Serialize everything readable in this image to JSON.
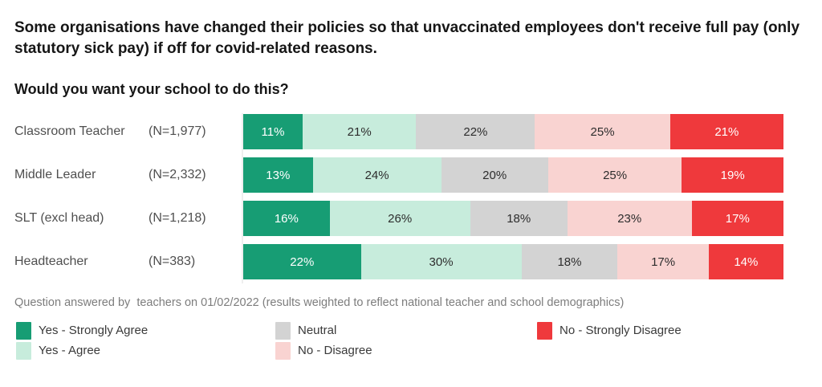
{
  "header": {
    "title": "Some organisations have changed their policies so that unvaccinated employees don't receive full pay (only statutory sick pay) if off for covid-related reasons.",
    "question": "Would you want your school to do this?"
  },
  "footnote": "Question answered by  teachers on 01/02/2022 (results weighted to reflect national teacher and school demographics)",
  "legend": [
    {
      "label": "Yes - Strongly Agree",
      "color": "#179D74",
      "text_color": "#ffffff"
    },
    {
      "label": "Yes - Agree",
      "color": "#C7ECDC",
      "text_color": "#2d2d2d"
    },
    {
      "label": "Neutral",
      "color": "#D3D3D3",
      "text_color": "#2d2d2d"
    },
    {
      "label": "No - Disagree",
      "color": "#F9D3D1",
      "text_color": "#2d2d2d"
    },
    {
      "label": "No - Strongly Disagree",
      "color": "#EF393C",
      "text_color": "#ffffff"
    }
  ],
  "chart_data": {
    "type": "bar",
    "orientation": "horizontal",
    "stacked": true,
    "stacked_total": 100,
    "value_suffix": "%",
    "grid": false,
    "legend_position": "bottom",
    "categories": [
      "Classroom Teacher",
      "Middle Leader",
      "SLT (excl head)",
      "Headteacher"
    ],
    "sample_sizes": [
      "(N=1,977)",
      "(N=2,332)",
      "(N=1,218)",
      "(N=383)"
    ],
    "series": [
      {
        "name": "Yes - Strongly Agree",
        "values": [
          11,
          13,
          16,
          22
        ]
      },
      {
        "name": "Yes - Agree",
        "values": [
          21,
          24,
          26,
          30
        ]
      },
      {
        "name": "Neutral",
        "values": [
          22,
          20,
          18,
          18
        ]
      },
      {
        "name": "No - Disagree",
        "values": [
          25,
          25,
          23,
          17
        ]
      },
      {
        "name": "No - Strongly Disagree",
        "values": [
          21,
          19,
          17,
          14
        ]
      }
    ]
  }
}
